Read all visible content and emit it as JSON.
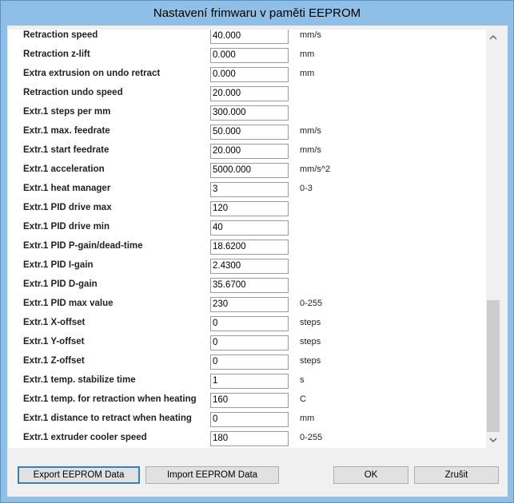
{
  "window": {
    "title": "Nastavení frimwaru v paměti EEPROM"
  },
  "rows": [
    {
      "label": "Retraction speed",
      "value": "40.000",
      "unit": "mm/s"
    },
    {
      "label": "Retraction z-lift",
      "value": "0.000",
      "unit": "mm"
    },
    {
      "label": "Extra extrusion on undo retract",
      "value": "0.000",
      "unit": "mm"
    },
    {
      "label": "Retraction undo speed",
      "value": "20.000"
    },
    {
      "label": "Extr.1 steps per mm",
      "value": "300.000"
    },
    {
      "label": "Extr.1 max. feedrate",
      "value": "50.000",
      "unit": "mm/s"
    },
    {
      "label": "Extr.1 start feedrate",
      "value": "20.000",
      "unit": "mm/s"
    },
    {
      "label": "Extr.1 acceleration",
      "value": "5000.000",
      "unit": "mm/s^2"
    },
    {
      "label": "Extr.1 heat manager",
      "value": "3",
      "unit": "0-3"
    },
    {
      "label": "Extr.1 PID drive max",
      "value": "120"
    },
    {
      "label": "Extr.1 PID drive min",
      "value": "40"
    },
    {
      "label": "Extr.1 PID P-gain/dead-time",
      "value": "18.6200"
    },
    {
      "label": "Extr.1 PID I-gain",
      "value": "2.4300"
    },
    {
      "label": "Extr.1 PID D-gain",
      "value": "35.6700"
    },
    {
      "label": "Extr.1 PID max value",
      "value": "230",
      "unit": "0-255"
    },
    {
      "label": "Extr.1 X-offset",
      "value": "0",
      "unit": "steps"
    },
    {
      "label": "Extr.1 Y-offset",
      "value": "0",
      "unit": "steps"
    },
    {
      "label": "Extr.1 Z-offset",
      "value": "0",
      "unit": "steps"
    },
    {
      "label": "Extr.1 temp. stabilize time",
      "value": "1",
      "unit": "s"
    },
    {
      "label": "Extr.1 temp. for retraction when heating",
      "value": "160",
      "unit": "C"
    },
    {
      "label": "Extr.1 distance to retract when heating",
      "value": "0",
      "unit": "mm"
    },
    {
      "label": "Extr.1 extruder cooler speed",
      "value": "180",
      "unit": "0-255"
    }
  ],
  "buttons": {
    "export": "Export EEPROM Data",
    "import": "Import EEPROM Data",
    "ok": "OK",
    "cancel": "Zrušit"
  }
}
